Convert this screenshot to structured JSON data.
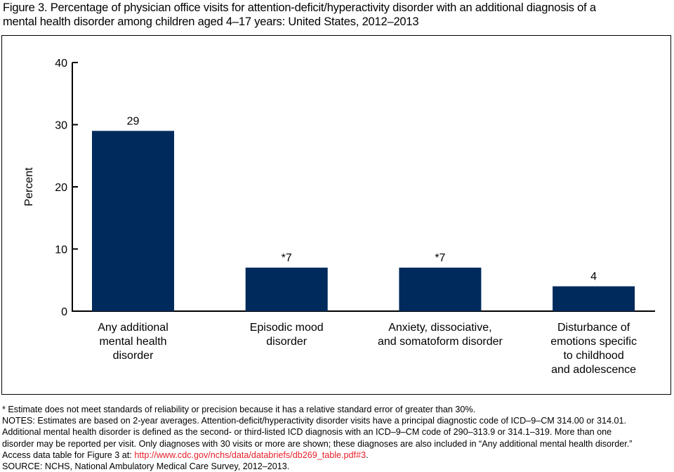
{
  "title_lines": [
    "Figure 3. Percentage of physician office visits for attention-deficit/hyperactivity disorder with an additional diagnosis of a",
    "mental health disorder among children aged 4–17 years: United States, 2012–2013"
  ],
  "chart_data": {
    "type": "bar",
    "title": "Percentage of physician office visits for attention-deficit/hyperactivity disorder with an additional diagnosis of a mental health disorder among children aged 4–17 years: United States, 2012–2013",
    "xlabel": "",
    "ylabel": "Percent",
    "ylim": [
      0,
      40
    ],
    "yticks": [
      0,
      10,
      20,
      30,
      40
    ],
    "grid": false,
    "bar_color": "#002a5c",
    "categories": [
      [
        "Any additional",
        "mental health",
        "disorder"
      ],
      [
        "Episodic mood",
        "disorder"
      ],
      [
        "Anxiety, dissociative,",
        "and somatoform disorder"
      ],
      [
        "Disturbance of",
        "emotions specific",
        "to childhood",
        "and adolescence"
      ]
    ],
    "values": [
      29,
      7,
      7,
      4
    ],
    "value_labels": [
      "29",
      "*7",
      "*7",
      "4"
    ]
  },
  "notes": {
    "asterisk": "* Estimate does not meet standards of reliability or precision because it has a relative standard error of greater than 30%.",
    "lines": [
      "NOTES: Estimates are based on 2-year averages. Attention-deficit/hyperactivity disorder visits have a principal diagnostic code of ICD–9–CM 314.00 or 314.01.",
      "Additional mental health disorder is defined as the second- or third-listed ICD diagnosis with an ICD–9–CM code of 290–313.9 or 314.1–319. More than one",
      "disorder may be reported per visit. Only diagnoses with 30 visits or more are shown; these diagnoses are also included in “Any additional mental health disorder.”"
    ],
    "access_prefix": "Access data table for Figure 3 at: ",
    "access_link": "http://www.cdc.gov/nchs/data/databriefs/db269_table.pdf#3",
    "access_suffix": ".",
    "source": "SOURCE: NCHS, National Ambulatory Medical Care Survey, 2012–2013."
  }
}
